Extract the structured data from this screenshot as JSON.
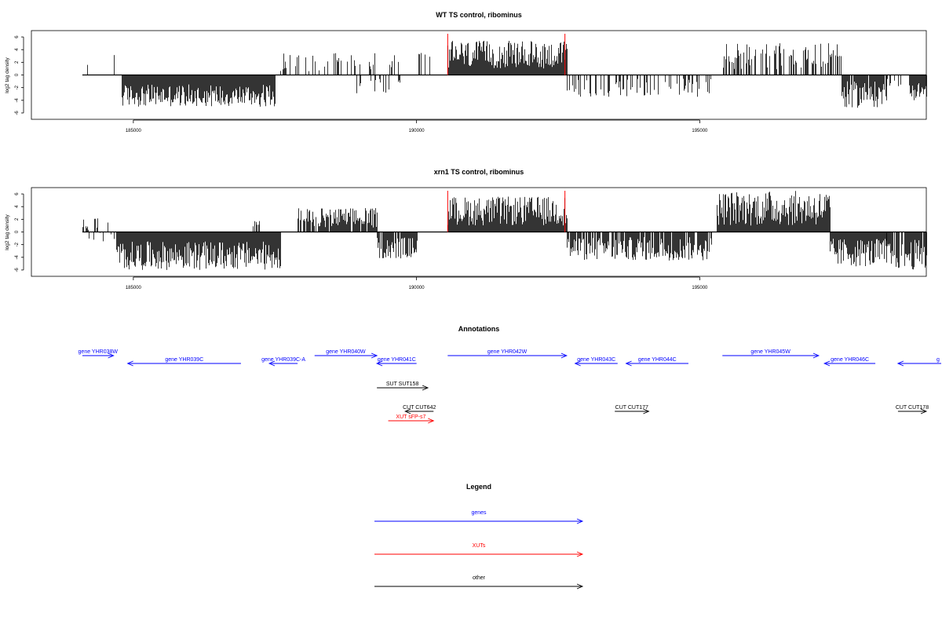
{
  "chart_data": [
    {
      "type": "bar",
      "title": "WT TS control, ribominus",
      "ylabel": "log2 tag density",
      "xlabel": "",
      "xlim": [
        183200,
        199000
      ],
      "ylim": [
        -7,
        7
      ],
      "xticks": [
        185000,
        190000,
        195000
      ],
      "xtick_labels": [
        "185000",
        "190000",
        "195000"
      ],
      "yticks": [
        -6,
        -4,
        -2,
        0,
        2,
        4,
        6
      ],
      "ytick_labels": [
        "-6",
        "-4",
        "-2",
        "0",
        "2",
        "4",
        "6"
      ],
      "grid": false,
      "baseline_x": [
        184100,
        199000
      ],
      "markers": [
        190550,
        192620
      ],
      "marker_color": "#ff0000",
      "bar_color": "#000000",
      "segments": [
        {
          "from": 184100,
          "to": 184200,
          "min": 1.2,
          "max": 1.6,
          "density": 0.3
        },
        {
          "from": 184600,
          "to": 184650,
          "min": 3.0,
          "max": 3.4,
          "density": 0.3
        },
        {
          "from": 184800,
          "to": 187500,
          "min": -5.0,
          "max": -1.5,
          "density": 1.0
        },
        {
          "from": 187600,
          "to": 190300,
          "min": 0.6,
          "max": 3.5,
          "density": 0.25
        },
        {
          "from": 188900,
          "to": 189700,
          "min": -3.0,
          "max": -0.6,
          "density": 0.35
        },
        {
          "from": 190550,
          "to": 192650,
          "min": 1.0,
          "max": 5.4,
          "density": 1.0
        },
        {
          "from": 192650,
          "to": 195200,
          "min": -3.5,
          "max": -0.6,
          "density": 0.35
        },
        {
          "from": 195400,
          "to": 197500,
          "min": 0.8,
          "max": 5.0,
          "density": 0.5
        },
        {
          "from": 197500,
          "to": 198300,
          "min": -5.2,
          "max": -1.0,
          "density": 0.9
        },
        {
          "from": 198300,
          "to": 198700,
          "min": -2.0,
          "max": -0.6,
          "density": 0.3
        },
        {
          "from": 198700,
          "to": 199000,
          "min": -4.0,
          "max": -1.0,
          "density": 1.0
        }
      ]
    },
    {
      "type": "bar",
      "title": "xrn1 TS control, ribominus",
      "ylabel": "log2 tag density",
      "xlabel": "",
      "xlim": [
        183200,
        199000
      ],
      "ylim": [
        -7,
        7
      ],
      "xticks": [
        185000,
        190000,
        195000
      ],
      "xtick_labels": [
        "185000",
        "190000",
        "195000"
      ],
      "yticks": [
        -6,
        -4,
        -2,
        0,
        2,
        4,
        6
      ],
      "ytick_labels": [
        "-6",
        "-4",
        "-2",
        "0",
        "2",
        "4",
        "6"
      ],
      "grid": false,
      "baseline_x": [
        184100,
        199000
      ],
      "markers": [
        190550,
        192620
      ],
      "marker_color": "#ff0000",
      "bar_color": "#000000",
      "segments": [
        {
          "from": 184100,
          "to": 184700,
          "min": -1.8,
          "max": 2.4,
          "density": 0.45
        },
        {
          "from": 184700,
          "to": 187600,
          "min": -6.0,
          "max": -1.5,
          "density": 1.0
        },
        {
          "from": 187100,
          "to": 187300,
          "min": 0.6,
          "max": 1.8,
          "density": 0.4
        },
        {
          "from": 187900,
          "to": 189300,
          "min": 0.6,
          "max": 3.8,
          "density": 0.9
        },
        {
          "from": 189300,
          "to": 190000,
          "min": -4.2,
          "max": -0.8,
          "density": 0.9
        },
        {
          "from": 190550,
          "to": 192650,
          "min": 1.0,
          "max": 5.6,
          "density": 1.0
        },
        {
          "from": 192650,
          "to": 195200,
          "min": -4.5,
          "max": -0.8,
          "density": 0.8
        },
        {
          "from": 195300,
          "to": 197300,
          "min": 1.0,
          "max": 6.5,
          "density": 1.0
        },
        {
          "from": 197300,
          "to": 198300,
          "min": -5.5,
          "max": -1.0,
          "density": 1.0
        },
        {
          "from": 198300,
          "to": 199000,
          "min": -6.0,
          "max": -1.2,
          "density": 0.8
        }
      ]
    }
  ],
  "annotations": {
    "title": "Annotations",
    "xlim": [
      183200,
      199000
    ],
    "colors": {
      "gene": "#0000ff",
      "xut": "#ff0000",
      "other": "#000000"
    },
    "features": [
      {
        "label": "gene YHR038W",
        "start": 184100,
        "end": 184650,
        "dir": "right",
        "row": 0,
        "kind": "gene"
      },
      {
        "label": "gene YHR039C",
        "start": 184900,
        "end": 186900,
        "dir": "left",
        "row": 1,
        "kind": "gene"
      },
      {
        "label": "gene YHR039C-A",
        "start": 187400,
        "end": 187900,
        "dir": "left",
        "row": 1,
        "kind": "gene"
      },
      {
        "label": "gene YHR040W",
        "start": 188200,
        "end": 189300,
        "dir": "right",
        "row": 0,
        "kind": "gene"
      },
      {
        "label": "gene YHR041C",
        "start": 189300,
        "end": 190000,
        "dir": "left",
        "row": 1,
        "kind": "gene"
      },
      {
        "label": "SUT SUT158",
        "start": 189300,
        "end": 190200,
        "dir": "right",
        "row": 2,
        "kind": "other"
      },
      {
        "label": "CUT CUT642",
        "start": 189800,
        "end": 190300,
        "dir": "left",
        "row": 3,
        "kind": "other"
      },
      {
        "label": "XUT sFP-s7",
        "start": 189500,
        "end": 190300,
        "dir": "right",
        "row": 4,
        "kind": "xut"
      },
      {
        "label": "gene YHR042W",
        "start": 190550,
        "end": 192650,
        "dir": "right",
        "row": 0,
        "kind": "gene"
      },
      {
        "label": "gene YHR043C",
        "start": 192800,
        "end": 193550,
        "dir": "left",
        "row": 1,
        "kind": "gene"
      },
      {
        "label": "gene YHR044C",
        "start": 193700,
        "end": 194800,
        "dir": "left",
        "row": 1,
        "kind": "gene"
      },
      {
        "label": "CUT CUT177",
        "start": 193500,
        "end": 194100,
        "dir": "right",
        "row": 3,
        "kind": "other"
      },
      {
        "label": "gene YHR045W",
        "start": 195400,
        "end": 197100,
        "dir": "right",
        "row": 0,
        "kind": "gene"
      },
      {
        "label": "gene YHR046C",
        "start": 197200,
        "end": 198100,
        "dir": "left",
        "row": 1,
        "kind": "gene"
      },
      {
        "label": "CUT CUT178",
        "start": 198500,
        "end": 199000,
        "dir": "right",
        "row": 3,
        "kind": "other"
      },
      {
        "label": "g",
        "start": 198500,
        "end": 199400,
        "dir": "left",
        "row": 1,
        "kind": "gene"
      }
    ]
  },
  "legend": {
    "title": "Legend",
    "items": [
      {
        "label": "genes",
        "color": "#0000ff"
      },
      {
        "label": "XUTs",
        "color": "#ff0000"
      },
      {
        "label": "other",
        "color": "#000000"
      }
    ]
  }
}
